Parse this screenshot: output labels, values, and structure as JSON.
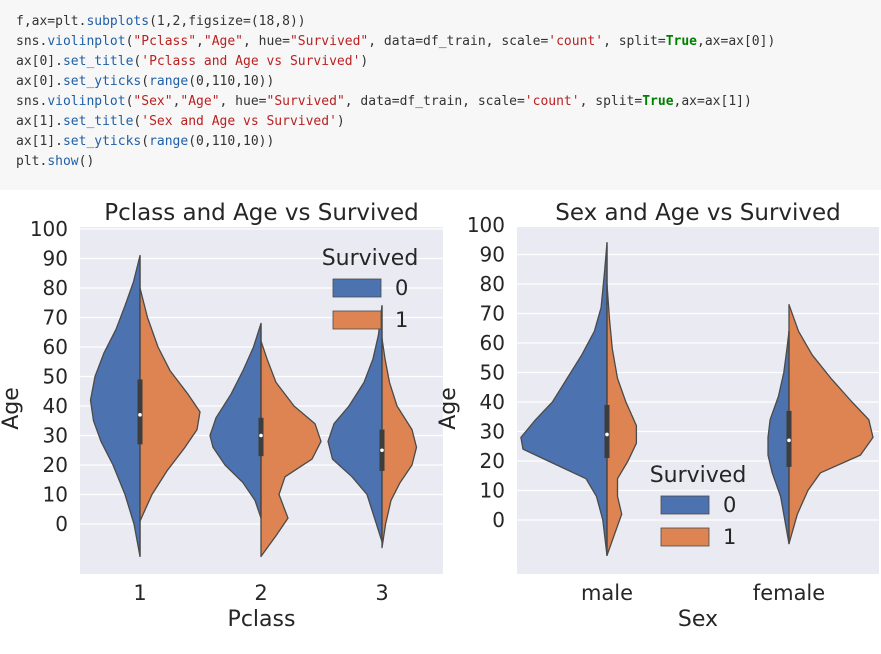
{
  "code": {
    "lines": [
      [
        {
          "t": "plain",
          "v": "f,ax=plt."
        },
        {
          "t": "fn",
          "v": "subplots"
        },
        {
          "t": "plain",
          "v": "(1,2,figsize=(18,8))"
        }
      ],
      [
        {
          "t": "plain",
          "v": "sns."
        },
        {
          "t": "fn",
          "v": "violinplot"
        },
        {
          "t": "plain",
          "v": "("
        },
        {
          "t": "str",
          "v": "\"Pclass\""
        },
        {
          "t": "plain",
          "v": ","
        },
        {
          "t": "str",
          "v": "\"Age\""
        },
        {
          "t": "plain",
          "v": ", hue="
        },
        {
          "t": "str",
          "v": "\"Survived\""
        },
        {
          "t": "plain",
          "v": ", data=df_train, scale="
        },
        {
          "t": "str",
          "v": "'count'"
        },
        {
          "t": "plain",
          "v": ", split="
        },
        {
          "t": "kw",
          "v": "True"
        },
        {
          "t": "plain",
          "v": ",ax=ax[0])"
        }
      ],
      [
        {
          "t": "plain",
          "v": "ax[0]."
        },
        {
          "t": "fn",
          "v": "set_title"
        },
        {
          "t": "plain",
          "v": "("
        },
        {
          "t": "str",
          "v": "'Pclass and Age vs Survived'"
        },
        {
          "t": "plain",
          "v": ")"
        }
      ],
      [
        {
          "t": "plain",
          "v": "ax[0]."
        },
        {
          "t": "fn",
          "v": "set_yticks"
        },
        {
          "t": "plain",
          "v": "("
        },
        {
          "t": "fn",
          "v": "range"
        },
        {
          "t": "plain",
          "v": "(0,110,10))"
        }
      ],
      [
        {
          "t": "plain",
          "v": "sns."
        },
        {
          "t": "fn",
          "v": "violinplot"
        },
        {
          "t": "plain",
          "v": "("
        },
        {
          "t": "str",
          "v": "\"Sex\""
        },
        {
          "t": "plain",
          "v": ","
        },
        {
          "t": "str",
          "v": "\"Age\""
        },
        {
          "t": "plain",
          "v": ", hue="
        },
        {
          "t": "str",
          "v": "\"Survived\""
        },
        {
          "t": "plain",
          "v": ", data=df_train, scale="
        },
        {
          "t": "str",
          "v": "'count'"
        },
        {
          "t": "plain",
          "v": ", split="
        },
        {
          "t": "kw",
          "v": "True"
        },
        {
          "t": "plain",
          "v": ",ax=ax[1])"
        }
      ],
      [
        {
          "t": "plain",
          "v": "ax[1]."
        },
        {
          "t": "fn",
          "v": "set_title"
        },
        {
          "t": "plain",
          "v": "("
        },
        {
          "t": "str",
          "v": "'Sex and Age vs Survived'"
        },
        {
          "t": "plain",
          "v": ")"
        }
      ],
      [
        {
          "t": "plain",
          "v": "ax[1]."
        },
        {
          "t": "fn",
          "v": "set_yticks"
        },
        {
          "t": "plain",
          "v": "("
        },
        {
          "t": "fn",
          "v": "range"
        },
        {
          "t": "plain",
          "v": "(0,110,10))"
        }
      ],
      [
        {
          "t": "plain",
          "v": "plt."
        },
        {
          "t": "fn",
          "v": "show"
        },
        {
          "t": "plain",
          "v": "()"
        }
      ]
    ]
  },
  "colors": {
    "survived_0": "#4c72b0",
    "survived_1": "#dd8452",
    "axes_bg": "#eaeaf2",
    "grid": "#ffffff",
    "outline": "#4a4a4a"
  },
  "chart_data": [
    {
      "type": "violin",
      "title": "Pclass and Age vs Survived",
      "xlabel": "Pclass",
      "ylabel": "Age",
      "categories": [
        "1",
        "2",
        "3"
      ],
      "yticks": [
        "0",
        "10",
        "20",
        "30",
        "40",
        "50",
        "60",
        "70",
        "80",
        "90",
        "100"
      ],
      "ylim": [
        -18,
        102
      ],
      "grid": true,
      "legend": {
        "title": "Survived",
        "placement": "top-right",
        "entries": [
          "0",
          "1"
        ]
      },
      "series": [
        {
          "name": "0",
          "side": "left",
          "violins": [
            {
              "category": "1",
              "min": -11,
              "max": 91,
              "q1": 27,
              "median": 37,
              "q3": 49,
              "profile": [
                [
                  -11,
                  0
                ],
                [
                  0,
                  0.02
                ],
                [
                  10,
                  0.05
                ],
                [
                  20,
                  0.09
                ],
                [
                  28,
                  0.13
                ],
                [
                  35,
                  0.155
                ],
                [
                  42,
                  0.165
                ],
                [
                  50,
                  0.15
                ],
                [
                  58,
                  0.12
                ],
                [
                  66,
                  0.08
                ],
                [
                  74,
                  0.05
                ],
                [
                  82,
                  0.022
                ],
                [
                  91,
                  0
                ]
              ]
            },
            {
              "category": "2",
              "min": 2,
              "max": 68,
              "q1": 23,
              "median": 30,
              "q3": 36,
              "profile": [
                [
                  2,
                  0
                ],
                [
                  8,
                  0.02
                ],
                [
                  14,
                  0.06
                ],
                [
                  20,
                  0.12
                ],
                [
                  26,
                  0.16
                ],
                [
                  30,
                  0.17
                ],
                [
                  36,
                  0.15
                ],
                [
                  44,
                  0.1
                ],
                [
                  52,
                  0.06
                ],
                [
                  60,
                  0.025
                ],
                [
                  68,
                  0
                ]
              ]
            },
            {
              "category": "3",
              "min": -6,
              "max": 74,
              "q1": 18,
              "median": 25,
              "q3": 32,
              "profile": [
                [
                  -6,
                  0
                ],
                [
                  2,
                  0.025
                ],
                [
                  10,
                  0.05
                ],
                [
                  16,
                  0.1
                ],
                [
                  22,
                  0.165
                ],
                [
                  28,
                  0.18
                ],
                [
                  34,
                  0.16
                ],
                [
                  40,
                  0.11
                ],
                [
                  48,
                  0.06
                ],
                [
                  56,
                  0.03
                ],
                [
                  64,
                  0.012
                ],
                [
                  74,
                  0
                ]
              ]
            }
          ]
        },
        {
          "name": "1",
          "side": "right",
          "violins": [
            {
              "category": "1",
              "min": 1,
              "max": 80,
              "q1": 27,
              "median": 37,
              "q3": 49,
              "profile": [
                [
                  1,
                  0
                ],
                [
                  10,
                  0.04
                ],
                [
                  18,
                  0.09
                ],
                [
                  26,
                  0.15
                ],
                [
                  32,
                  0.19
                ],
                [
                  38,
                  0.2
                ],
                [
                  44,
                  0.16
                ],
                [
                  52,
                  0.1
                ],
                [
                  60,
                  0.06
                ],
                [
                  70,
                  0.025
                ],
                [
                  80,
                  0
                ]
              ]
            },
            {
              "category": "2",
              "min": -11,
              "max": 62,
              "q1": 23,
              "median": 29,
              "q3": 36,
              "profile": [
                [
                  -11,
                  0
                ],
                [
                  -4,
                  0.05
                ],
                [
                  2,
                  0.09
                ],
                [
                  10,
                  0.06
                ],
                [
                  16,
                  0.08
                ],
                [
                  22,
                  0.17
                ],
                [
                  28,
                  0.2
                ],
                [
                  34,
                  0.18
                ],
                [
                  40,
                  0.11
                ],
                [
                  48,
                  0.05
                ],
                [
                  56,
                  0.02
                ],
                [
                  62,
                  0
                ]
              ]
            },
            {
              "category": "3",
              "min": -8,
              "max": 63,
              "q1": 18,
              "median": 24,
              "q3": 32,
              "profile": [
                [
                  -8,
                  0
                ],
                [
                  0,
                  0.012
                ],
                [
                  8,
                  0.03
                ],
                [
                  14,
                  0.06
                ],
                [
                  20,
                  0.1
                ],
                [
                  26,
                  0.115
                ],
                [
                  32,
                  0.1
                ],
                [
                  40,
                  0.05
                ],
                [
                  48,
                  0.025
                ],
                [
                  56,
                  0.01
                ],
                [
                  63,
                  0
                ]
              ]
            }
          ]
        }
      ]
    },
    {
      "type": "violin",
      "title": "Sex and Age vs Survived",
      "xlabel": "Sex",
      "ylabel": "Age",
      "categories": [
        "male",
        "female"
      ],
      "yticks": [
        "0",
        "10",
        "20",
        "30",
        "40",
        "50",
        "60",
        "70",
        "80",
        "90",
        "100"
      ],
      "ylim": [
        -18,
        102
      ],
      "grid": true,
      "legend": {
        "title": "Survived",
        "placement": "lower-right",
        "entries": [
          "0",
          "1"
        ]
      },
      "series": [
        {
          "name": "0",
          "side": "left",
          "violins": [
            {
              "category": "male",
              "min": -12,
              "max": 94,
              "q1": 21,
              "median": 29,
              "q3": 39,
              "profile": [
                [
                  -12,
                  0
                ],
                [
                  0,
                  0.02
                ],
                [
                  8,
                  0.05
                ],
                [
                  14,
                  0.1
                ],
                [
                  20,
                  0.28
                ],
                [
                  24,
                  0.4
                ],
                [
                  28,
                  0.41
                ],
                [
                  34,
                  0.34
                ],
                [
                  40,
                  0.26
                ],
                [
                  48,
                  0.19
                ],
                [
                  56,
                  0.12
                ],
                [
                  64,
                  0.06
                ],
                [
                  72,
                  0.028
                ],
                [
                  84,
                  0.012
                ],
                [
                  94,
                  0
                ]
              ]
            },
            {
              "category": "female",
              "min": -8,
              "max": 64,
              "q1": 18,
              "median": 27,
              "q3": 37,
              "profile": [
                [
                  -8,
                  0
                ],
                [
                  0,
                  0.02
                ],
                [
                  8,
                  0.04
                ],
                [
                  16,
                  0.08
                ],
                [
                  22,
                  0.1
                ],
                [
                  28,
                  0.1
                ],
                [
                  34,
                  0.09
                ],
                [
                  42,
                  0.05
                ],
                [
                  50,
                  0.025
                ],
                [
                  58,
                  0.01
                ],
                [
                  64,
                  0
                ]
              ]
            }
          ]
        },
        {
          "name": "1",
          "side": "right",
          "violins": [
            {
              "category": "male",
              "min": -12,
              "max": 80,
              "q1": 21,
              "median": 29,
              "q3": 39,
              "profile": [
                [
                  -12,
                  0
                ],
                [
                  -4,
                  0.04
                ],
                [
                  2,
                  0.07
                ],
                [
                  8,
                  0.05
                ],
                [
                  14,
                  0.05
                ],
                [
                  20,
                  0.1
                ],
                [
                  26,
                  0.14
                ],
                [
                  32,
                  0.14
                ],
                [
                  40,
                  0.09
                ],
                [
                  48,
                  0.05
                ],
                [
                  58,
                  0.025
                ],
                [
                  68,
                  0.012
                ],
                [
                  80,
                  0
                ]
              ]
            },
            {
              "category": "female",
              "min": -8,
              "max": 73,
              "q1": 18,
              "median": 27,
              "q3": 37,
              "profile": [
                [
                  -8,
                  0
                ],
                [
                  2,
                  0.04
                ],
                [
                  10,
                  0.09
                ],
                [
                  16,
                  0.15
                ],
                [
                  22,
                  0.34
                ],
                [
                  28,
                  0.4
                ],
                [
                  34,
                  0.38
                ],
                [
                  40,
                  0.3
                ],
                [
                  48,
                  0.2
                ],
                [
                  56,
                  0.11
                ],
                [
                  64,
                  0.045
                ],
                [
                  73,
                  0
                ]
              ]
            }
          ]
        }
      ]
    }
  ]
}
